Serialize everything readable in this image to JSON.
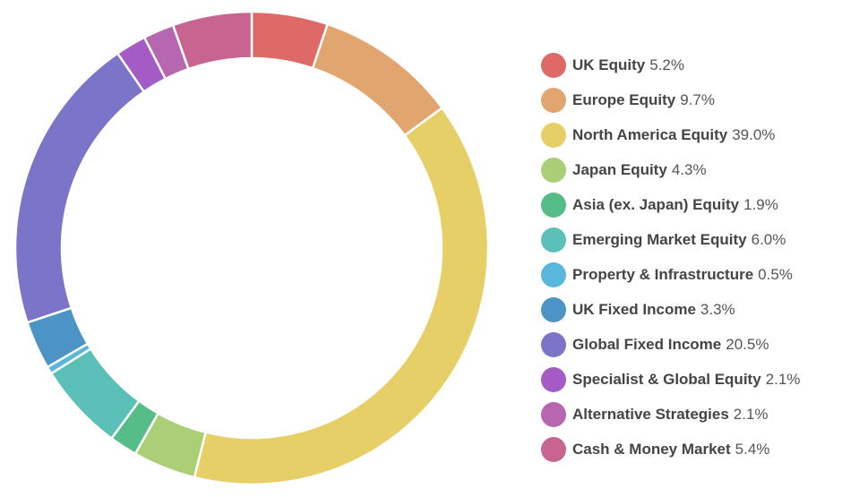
{
  "chart_data": {
    "type": "pie",
    "variant": "donut",
    "title": "",
    "legend_position": "right",
    "slices": [
      {
        "label": "UK Equity",
        "value_text": "5.2%",
        "value": 5.2,
        "color": "#dd6a66"
      },
      {
        "label": "Europe Equity",
        "value_text": "9.7%",
        "value": 9.7,
        "color": "#e1a56f"
      },
      {
        "label": "North America Equity",
        "value_text": "39.0%",
        "value": 39.0,
        "color": "#e5cf66"
      },
      {
        "label": "Japan Equity",
        "value_text": "4.3%",
        "value": 4.3,
        "color": "#aacf76"
      },
      {
        "label": "Asia (ex. Japan) Equity",
        "value_text": "1.9%",
        "value": 1.9,
        "color": "#55bd87"
      },
      {
        "label": "Emerging Market Equity",
        "value_text": "6.0%",
        "value": 6.0,
        "color": "#5bc0b8"
      },
      {
        "label": "Property & Infrastructure",
        "value_text": "0.5%",
        "value": 0.5,
        "color": "#5ab7dc"
      },
      {
        "label": "UK Fixed Income",
        "value_text": "3.3%",
        "value": 3.3,
        "color": "#4c94c6"
      },
      {
        "label": "Global Fixed Income",
        "value_text": "20.5%",
        "value": 20.5,
        "color": "#7b74c8"
      },
      {
        "label": "Specialist & Global Equity",
        "value_text": "2.1%",
        "value": 2.1,
        "color": "#a45cc4"
      },
      {
        "label": "Alternative Strategies",
        "value_text": "2.1%",
        "value": 2.1,
        "color": "#b767b0"
      },
      {
        "label": "Cash & Money Market",
        "value_text": "5.4%",
        "value": 5.4,
        "color": "#c76590"
      }
    ]
  }
}
